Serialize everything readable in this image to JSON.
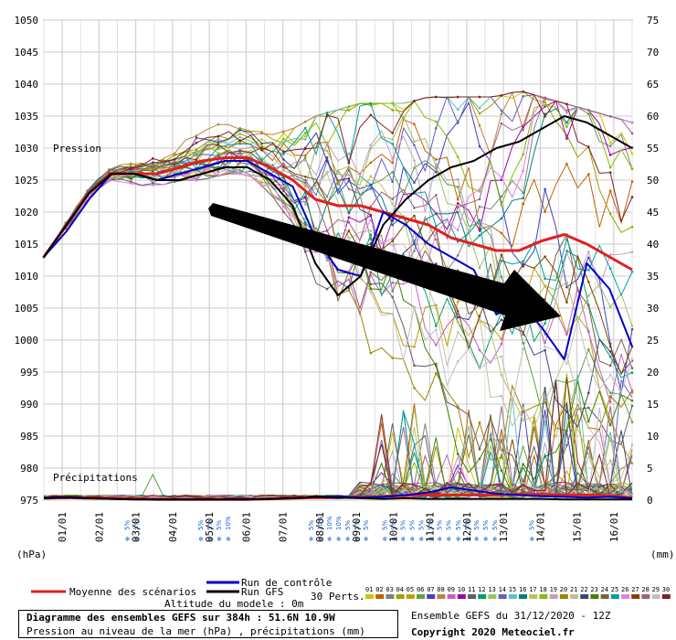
{
  "chart_data": {
    "type": "line",
    "title": "Diagramme des ensembles GEFS sur 384h : 51.6N 10.9W",
    "subtitle": "Pression au niveau de la mer (hPa) , précipitations (mm)",
    "left_axis": {
      "unit_label": "(hPa)",
      "range": [
        975,
        1050
      ],
      "ticks": [
        975,
        980,
        985,
        990,
        995,
        1000,
        1005,
        1010,
        1015,
        1020,
        1025,
        1030,
        1035,
        1040,
        1045,
        1050
      ]
    },
    "right_axis": {
      "unit_label": "(mm)",
      "range": [
        0,
        75
      ],
      "ticks": [
        0,
        5,
        10,
        15,
        20,
        25,
        30,
        35,
        40,
        45,
        50,
        55,
        60,
        65,
        70,
        75
      ]
    },
    "x_labels": [
      "01/01",
      "02/01",
      "03/01",
      "04/01",
      "05/01",
      "06/01",
      "07/01",
      "08/01",
      "09/01",
      "10/01",
      "11/01",
      "12/01",
      "13/01",
      "14/01",
      "15/01",
      "16/01"
    ],
    "x_range_hours": [
      0,
      384
    ],
    "section_labels": {
      "pressure": "Pression",
      "precip": "Précipitations"
    },
    "legend": {
      "mean": "Moyenne des scénarios",
      "control": "Run de contrôle",
      "gfs": "Run GFS",
      "perts": "30 Perts.",
      "altitude": "Altitude du modele : 0m"
    },
    "member_ids": [
      "01",
      "02",
      "03",
      "04",
      "05",
      "06",
      "07",
      "08",
      "09",
      "10",
      "11",
      "12",
      "13",
      "14",
      "15",
      "16",
      "17",
      "18",
      "19",
      "20",
      "21",
      "22",
      "23",
      "24",
      "25",
      "26",
      "27",
      "28",
      "29",
      "30"
    ],
    "member_colors": [
      "#c8c800",
      "#c06000",
      "#808080",
      "#a0a000",
      "#c0a000",
      "#60a040",
      "#4040c0",
      "#c08040",
      "#c060c0",
      "#a000a0",
      "#606060",
      "#00a060",
      "#a0c060",
      "#6060c0",
      "#60c0c0",
      "#008080",
      "#c0c060",
      "#80c000",
      "#c0a0c0",
      "#a08000",
      "#c0c0a0",
      "#404080",
      "#408000",
      "#806040",
      "#00a0a0",
      "#e080e0",
      "#804000",
      "#a06080",
      "#c0c0c0",
      "#802020"
    ],
    "series": [
      {
        "name": "Moyenne des scénarios",
        "color": "#e02020",
        "pressure": [
          1013,
          1018,
          1023,
          1026,
          1026,
          1026,
          1027,
          1028,
          1028.5,
          1028.5,
          1027,
          1025,
          1022,
          1021,
          1021,
          1020,
          1019,
          1018,
          1016,
          1015,
          1014,
          1014,
          1015.5,
          1016.5,
          1015,
          1013,
          1011
        ],
        "precip": [
          0.3,
          0.4,
          0.3,
          0.3,
          0.2,
          0.1,
          0.1,
          0.1,
          0.1,
          0.1,
          0.2,
          0.3,
          0.4,
          0.4,
          0.5,
          0.6,
          0.7,
          0.8,
          0.8,
          0.8,
          0.8,
          0.9,
          0.9,
          0.8,
          0.8,
          0.7,
          0.4
        ]
      },
      {
        "name": "Run de contrôle",
        "color": "#0000c8",
        "pressure": [
          1013,
          1017,
          1022,
          1026,
          1026,
          1025,
          1026,
          1027,
          1028,
          1028,
          1026,
          1024,
          1016,
          1011,
          1010,
          1020,
          1018,
          1015,
          1013,
          1011,
          1004,
          1006,
          1002,
          997,
          1012,
          1008,
          999
        ],
        "precip": [
          0.4,
          0.5,
          0.3,
          0.2,
          0.1,
          0.1,
          0.1,
          0.1,
          0.1,
          0.1,
          0.2,
          0.3,
          0.5,
          0.6,
          0.4,
          0.5,
          0.8,
          1.2,
          2.0,
          1.5,
          1.0,
          0.8,
          0.6,
          0.5,
          0.4,
          0.5,
          0.3
        ]
      },
      {
        "name": "Run GFS",
        "color": "#000000",
        "pressure": [
          1013,
          1018,
          1023,
          1026,
          1026,
          1025,
          1025,
          1026,
          1027,
          1027,
          1025,
          1021,
          1012,
          1007,
          1010,
          1018,
          1022,
          1025,
          1027,
          1028,
          1030,
          1031,
          1033,
          1035,
          1034,
          1032,
          1030
        ],
        "precip": [
          0.3,
          0.4,
          0.3,
          0.2,
          0.1,
          0.1,
          0.1,
          0.1,
          0.1,
          0.1,
          0.2,
          0.3,
          0.5,
          0.4,
          0.3,
          0.2,
          0.3,
          0.2,
          0.2,
          0.2,
          0.2,
          0.2,
          0.2,
          0.1,
          0.1,
          0.1,
          0.1
        ]
      }
    ],
    "spread_envelope_hpa": {
      "min": [
        1013,
        1017,
        1021,
        1024,
        1024,
        1024,
        1025,
        1025,
        1026,
        1026,
        1023,
        1018,
        1008,
        1002,
        999,
        996,
        994,
        990,
        984,
        978,
        976,
        976,
        976,
        976,
        976,
        976,
        976
      ],
      "max": [
        1013,
        1019,
        1024,
        1027,
        1028,
        1029,
        1031,
        1033,
        1034,
        1034,
        1032,
        1033,
        1035,
        1036,
        1037,
        1037,
        1037,
        1038,
        1038,
        1038,
        1038,
        1039,
        1038,
        1037,
        1036,
        1035,
        1034
      ]
    },
    "snow_markers": [
      {
        "day": "03/01",
        "values": [
          "5%",
          "5%"
        ]
      },
      {
        "day": "05/01",
        "values": [
          "5%",
          "5%",
          "5%",
          "10%"
        ]
      },
      {
        "day": "08/01",
        "values": [
          "5%",
          "10%",
          "10%",
          "10%",
          "5%",
          "5%",
          "5%"
        ]
      },
      {
        "day": "10/01",
        "values": [
          "5%",
          "5%",
          "5%",
          "5%",
          "5%",
          "5%",
          "5%",
          "5%"
        ]
      },
      {
        "day": "12/01",
        "values": [
          "5%",
          "5%",
          "5%",
          "5%",
          "5%"
        ]
      },
      {
        "day": "14/01",
        "values": [
          "5%"
        ]
      }
    ]
  },
  "footer": {
    "title": "Diagramme des ensembles GEFS sur 384h : 51.6N 10.9W",
    "subtitle": "Pression au niveau de la mer (hPa) , précipitations (mm)",
    "run": "Ensemble GEFS du 31/12/2020 - 12Z",
    "copyright": "Copyright 2020 Meteociel.fr"
  }
}
